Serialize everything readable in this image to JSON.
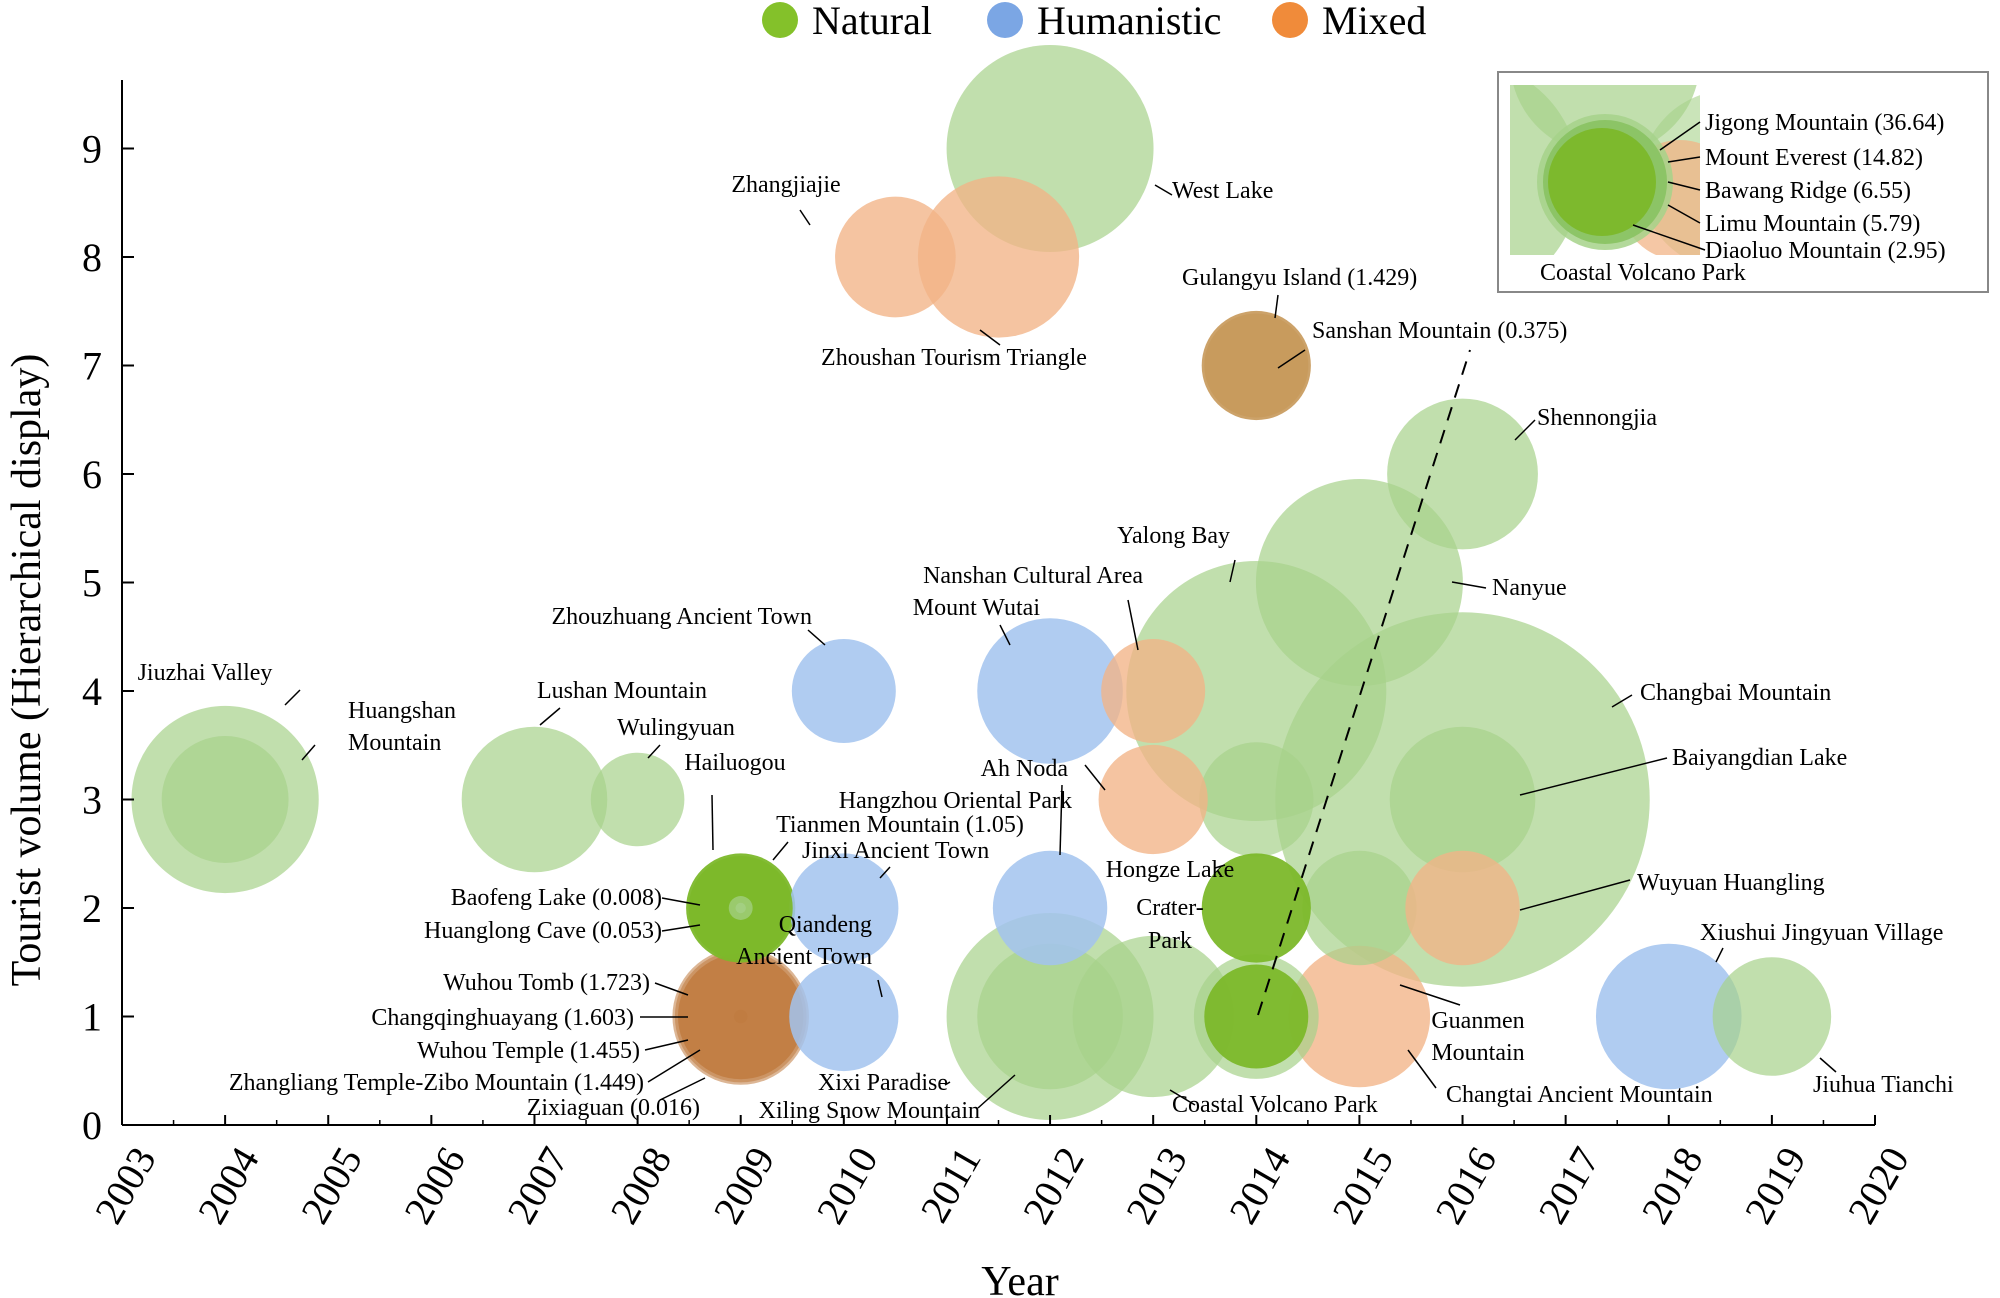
{
  "chart_data": {
    "type": "scatter",
    "subtype": "bubble",
    "xlabel": "Year",
    "ylabel": "Tourist volume (Hierarchical display)",
    "xlim": [
      2003,
      2020
    ],
    "ylim": [
      0,
      9.5
    ],
    "x_ticks": [
      "2003",
      "2004",
      "2005",
      "2006",
      "2007",
      "2008",
      "2009",
      "2010",
      "2011",
      "2012",
      "2013",
      "2014",
      "2015",
      "2016",
      "2017",
      "2018",
      "2019",
      "2020"
    ],
    "y_ticks": [
      "0",
      "1",
      "2",
      "3",
      "4",
      "5",
      "6",
      "7",
      "8",
      "9"
    ],
    "grid": false,
    "legend": [
      {
        "label": "Natural",
        "color": "#84c12a"
      },
      {
        "label": "Humanistic",
        "color": "#7ba6e4"
      },
      {
        "label": "Mixed",
        "color": "#f08b3a"
      }
    ],
    "colors": {
      "natural_light": "#a6d28a",
      "natural_mid": "#88c262",
      "natural_dark": "#7cb82a",
      "humanistic": "#a2c3ef",
      "mixed": "#f2b487",
      "mixed_dark": "#c07a3e",
      "mixed_brown": "#c89a5c"
    },
    "points": [
      {
        "x": 2004,
        "y": 3,
        "size": 1.8,
        "cat": "natural",
        "label": "Jiuzhai Valley"
      },
      {
        "x": 2004,
        "y": 3,
        "size": 1.22,
        "cat": "natural",
        "label": "Huangshan Mountain"
      },
      {
        "x": 2007,
        "y": 3,
        "size": 1.4,
        "cat": "natural",
        "label": "Lushan Mountain"
      },
      {
        "x": 2008,
        "y": 3,
        "size": 0.9,
        "cat": "natural",
        "label": "Wulingyuan"
      },
      {
        "x": 2009,
        "y": 2,
        "size": 1.05,
        "cat": "natural",
        "label": "Hailuogou"
      },
      {
        "x": 2009,
        "y": 2,
        "size": 1.0,
        "cat": "natural",
        "label": "Tianmen Mountain (1.05)"
      },
      {
        "x": 2009,
        "y": 2,
        "size": 0.1,
        "cat": "natural",
        "label": "Baofeng Lake (0.008)"
      },
      {
        "x": 2009,
        "y": 2,
        "size": 0.23,
        "cat": "natural",
        "label": "Huanglong Cave (0.053)"
      },
      {
        "x": 2009,
        "y": 1,
        "size": 1.313,
        "cat": "mixed",
        "label": "Wuhou Tomb (1.723)"
      },
      {
        "x": 2009,
        "y": 1,
        "size": 1.266,
        "cat": "mixed",
        "label": "Changqinghuayang (1.603)"
      },
      {
        "x": 2009,
        "y": 1,
        "size": 1.206,
        "cat": "mixed",
        "label": "Wuhou Temple (1.455)"
      },
      {
        "x": 2009,
        "y": 1,
        "size": 1.204,
        "cat": "mixed",
        "label": "Zhangliang Temple-Zibo Mountain (1.449)"
      },
      {
        "x": 2009,
        "y": 1,
        "size": 0.13,
        "cat": "mixed",
        "label": "Zixiaguan (0.016)"
      },
      {
        "x": 2010,
        "y": 4,
        "size": 1.0,
        "cat": "humanistic",
        "label": "Zhouzhuang Ancient Town"
      },
      {
        "x": 2010,
        "y": 2,
        "size": 1.05,
        "cat": "humanistic",
        "label": "Jinxi Ancient Town"
      },
      {
        "x": 2010,
        "y": 1,
        "size": 1.05,
        "cat": "humanistic",
        "label": "Qiandeng Ancient Town"
      },
      {
        "x": 2010.5,
        "y": 8,
        "size": 1.16,
        "cat": "mixed",
        "label": "Zhangjiajie"
      },
      {
        "x": 2011.5,
        "y": 8,
        "size": 1.55,
        "cat": "mixed",
        "label": "Zhoushan Tourism Triangle"
      },
      {
        "x": 2012,
        "y": 9,
        "size": 1.99,
        "cat": "natural",
        "label": "West Lake"
      },
      {
        "x": 2012,
        "y": 4,
        "size": 1.4,
        "cat": "humanistic",
        "label": "Mount Wutai"
      },
      {
        "x": 2012,
        "y": 2,
        "size": 1.1,
        "cat": "humanistic",
        "label": "Hangzhou Oriental Park"
      },
      {
        "x": 2012,
        "y": 1,
        "size": 1.99,
        "cat": "natural",
        "label": "Xixi Paradise"
      },
      {
        "x": 2012,
        "y": 1,
        "size": 1.4,
        "cat": "natural",
        "label": "Xiling Snow Mountain"
      },
      {
        "x": 2013,
        "y": 4,
        "size": 1.0,
        "cat": "mixed",
        "label": "Nanshan Cultural Area"
      },
      {
        "x": 2013,
        "y": 3,
        "size": 1.05,
        "cat": "mixed",
        "label": "Ah Noda"
      },
      {
        "x": 2013,
        "y": 1,
        "size": 1.55,
        "cat": "natural",
        "label": "Hongze Lake"
      },
      {
        "x": 2014,
        "y": 4,
        "size": 2.5,
        "cat": "natural",
        "label": "Yalong Bay"
      },
      {
        "x": 2014,
        "y": 7,
        "size": 1.05,
        "cat": "mixed_brown",
        "label": "Gulangyu Island (1.429)"
      },
      {
        "x": 2014,
        "y": 7,
        "size": 1.0,
        "cat": "mixed_brown",
        "label": "Sanshan Mountain (0.375)"
      },
      {
        "x": 2014,
        "y": 3,
        "size": 1.1,
        "cat": "natural",
        "label": "Crater-Park"
      },
      {
        "x": 2014,
        "y": 2,
        "size": 1.05,
        "cat": "natural",
        "label": "Crater-Park"
      },
      {
        "x": 2014,
        "y": 1,
        "size": 1.2,
        "cat": "natural",
        "label": "Coastal Volcano Park"
      },
      {
        "x": 2014,
        "y": 1,
        "size": 1.0,
        "cat": "natural",
        "label": "Coastal Volcano Park"
      },
      {
        "x": 2015,
        "y": 5,
        "size": 1.99,
        "cat": "natural",
        "label": "Nanyue"
      },
      {
        "x": 2015,
        "y": 2,
        "size": 1.1,
        "cat": "natural",
        "label": "Guanmen Mountain"
      },
      {
        "x": 2015,
        "y": 1,
        "size": 1.36,
        "cat": "mixed",
        "label": "Changtai Ancient Mountain"
      },
      {
        "x": 2016,
        "y": 6,
        "size": 1.45,
        "cat": "natural",
        "label": "Shennongjia"
      },
      {
        "x": 2016,
        "y": 3,
        "size": 3.6,
        "cat": "natural",
        "label": "Changbai Mountain"
      },
      {
        "x": 2016,
        "y": 3,
        "size": 1.4,
        "cat": "natural",
        "label": "Baiyangdian Lake"
      },
      {
        "x": 2016,
        "y": 2,
        "size": 1.1,
        "cat": "mixed",
        "label": "Wuyuan Huangling"
      },
      {
        "x": 2018,
        "y": 1,
        "size": 1.4,
        "cat": "humanistic",
        "label": "Xiushui Jingyuan Village"
      },
      {
        "x": 2019,
        "y": 1,
        "size": 1.14,
        "cat": "natural",
        "label": "Jiuhua Tianchi"
      }
    ],
    "inset": {
      "labels": [
        "Jigong Mountain (36.64)",
        "Mount Everest (14.82)",
        "Bawang Ridge (6.55)",
        "Limu Mountain (5.79)",
        "Diaoluo Mountain (2.95)",
        "Coastal Volcano Park"
      ]
    }
  }
}
